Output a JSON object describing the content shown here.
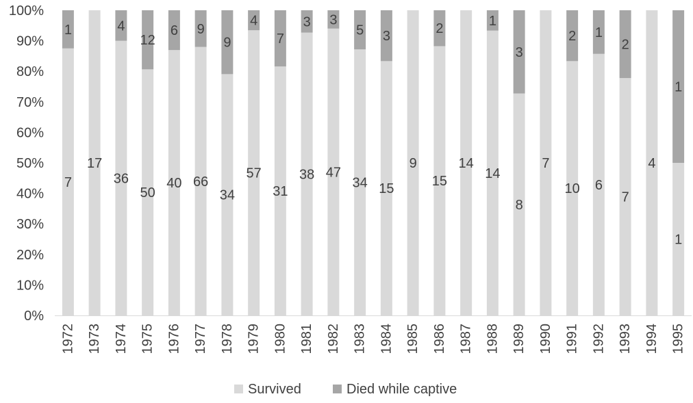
{
  "chart_data": {
    "type": "bar",
    "stacked": "percent",
    "categories": [
      "1972",
      "1973",
      "1974",
      "1975",
      "1976",
      "1977",
      "1978",
      "1979",
      "1980",
      "1981",
      "1982",
      "1983",
      "1984",
      "1985",
      "1986",
      "1987",
      "1988",
      "1989",
      "1990",
      "1991",
      "1992",
      "1993",
      "1994",
      "1995"
    ],
    "series": [
      {
        "name": "Survived",
        "color": "#d9d9d9",
        "values": [
          7,
          17,
          36,
          50,
          40,
          66,
          34,
          57,
          31,
          38,
          47,
          34,
          15,
          9,
          15,
          14,
          14,
          8,
          7,
          10,
          6,
          7,
          4,
          1
        ]
      },
      {
        "name": "Died while captive",
        "color": "#a6a6a6",
        "values": [
          1,
          0,
          4,
          12,
          6,
          9,
          9,
          4,
          7,
          3,
          3,
          5,
          3,
          0,
          2,
          0,
          1,
          3,
          0,
          2,
          1,
          2,
          0,
          1
        ]
      }
    ],
    "y_ticks": [
      "0%",
      "10%",
      "20%",
      "30%",
      "40%",
      "50%",
      "60%",
      "70%",
      "80%",
      "90%",
      "100%"
    ],
    "ylim": [
      0,
      100
    ],
    "legend_position": "bottom",
    "grid": false
  }
}
